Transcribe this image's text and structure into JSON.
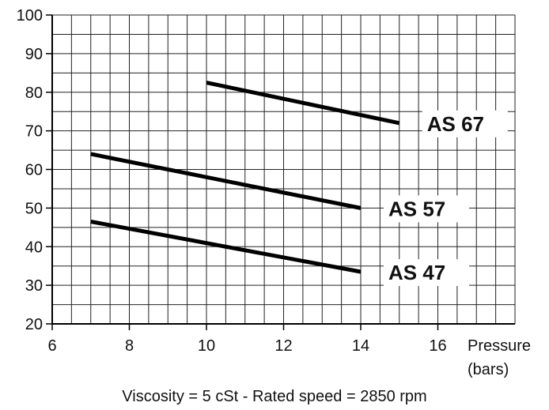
{
  "chart_data": {
    "type": "line",
    "title": "",
    "xlabel": "Pressure",
    "xlabel_unit": "(bars)",
    "ylabel": "",
    "xlim": [
      6,
      18
    ],
    "ylim": [
      20,
      100
    ],
    "x_ticks": [
      6,
      8,
      10,
      12,
      14,
      16
    ],
    "y_ticks": [
      20,
      30,
      40,
      50,
      60,
      70,
      80,
      90,
      100
    ],
    "grid": true,
    "series": [
      {
        "name": "AS  67",
        "x": [
          10,
          15
        ],
        "y": [
          82.5,
          72
        ]
      },
      {
        "name": "AS  57",
        "x": [
          7,
          14
        ],
        "y": [
          64,
          50
        ]
      },
      {
        "name": "AS  47",
        "x": [
          7,
          14
        ],
        "y": [
          46.5,
          33.5
        ]
      }
    ],
    "caption": "Viscosity = 5 cSt  -  Rated speed = 2850 rpm"
  }
}
